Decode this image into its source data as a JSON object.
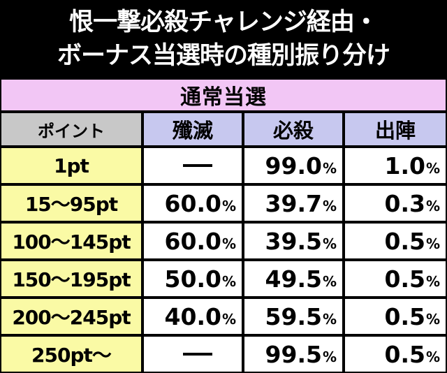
{
  "title": {
    "line1": "恨一撃必殺チャレンジ経由・",
    "line2": "ボーナス当選時の種別振り分け"
  },
  "table": {
    "section": "通常当選",
    "headers": [
      "ポイント",
      "殲滅",
      "必殺",
      "出陣"
    ],
    "percent_sign": "%",
    "rows": [
      {
        "point": "1pt",
        "senmetsu": null,
        "hissatsu": "99.0",
        "shutsujin": "1.0"
      },
      {
        "point": "15〜95pt",
        "senmetsu": "60.0",
        "hissatsu": "39.7",
        "shutsujin": "0.3"
      },
      {
        "point": "100〜145pt",
        "senmetsu": "60.0",
        "hissatsu": "39.5",
        "shutsujin": "0.5"
      },
      {
        "point": "150〜195pt",
        "senmetsu": "50.0",
        "hissatsu": "49.5",
        "shutsujin": "0.5"
      },
      {
        "point": "200〜245pt",
        "senmetsu": "40.0",
        "hissatsu": "59.5",
        "shutsujin": "0.5"
      },
      {
        "point": "250pt〜",
        "senmetsu": null,
        "hissatsu": "99.5",
        "shutsujin": "0.5"
      }
    ]
  },
  "colors": {
    "section_bg": "#f2c6f5",
    "header_bg": "#c7c8ef",
    "header_first_bg": "#c8c8c8",
    "label_bg": "#fafaa5",
    "value_bg": "#ffffff"
  }
}
